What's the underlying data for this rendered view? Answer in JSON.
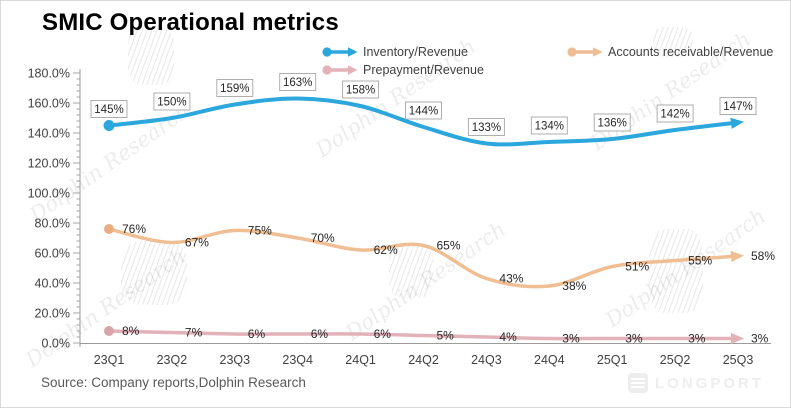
{
  "title": "SMIC Operational metrics",
  "source_note": "Source: Company reports,Dolphin Research",
  "watermark_text": "Dolphin Research",
  "brand_logo_text": "LONGPORT",
  "colors": {
    "inventory_line": "#2BA7DD",
    "prepayment_line": "#E2B2B8",
    "accounts_line": "#F0BE93",
    "axis": "#9B9B9B",
    "axis_label": "#404040",
    "data_label": "#262626",
    "label_box_border": "#A6A6A6"
  },
  "chart_data": {
    "type": "line",
    "title": "SMIC Operational metrics",
    "categories": [
      "23Q1",
      "23Q2",
      "23Q3",
      "23Q4",
      "24Q1",
      "24Q2",
      "24Q3",
      "24Q4",
      "25Q1",
      "25Q2",
      "25Q3"
    ],
    "series": [
      {
        "name": "Inventory/Revenue",
        "color": "#2BA7DD",
        "line_width": 4,
        "label_style": "boxed",
        "values": [
          145,
          150,
          159,
          163,
          158,
          144,
          133,
          134,
          136,
          142,
          147
        ]
      },
      {
        "name": "Prepayment/Revenue",
        "color": "#E2B2B8",
        "marker_color": "#D9A3AA",
        "line_width": 3.5,
        "label_style": "plain",
        "values": [
          8,
          7,
          6,
          6,
          6,
          5,
          4,
          3,
          3,
          3,
          3
        ]
      },
      {
        "name": "Accounts receivable/Revenue",
        "color": "#F0BE93",
        "marker_color": "#EBAE80",
        "line_width": 3.5,
        "label_style": "plain",
        "values": [
          76,
          67,
          75,
          70,
          62,
          65,
          43,
          38,
          51,
          55,
          58
        ]
      }
    ],
    "value_suffix": "%",
    "ylim": [
      0,
      180
    ],
    "ytick_step": 20,
    "yticklabels": [
      "0.0%",
      "20.0%",
      "40.0%",
      "60.0%",
      "80.0%",
      "100.0%",
      "120.0%",
      "140.0%",
      "160.0%",
      "180.0%"
    ],
    "xlabel": "",
    "ylabel": "",
    "grid": false,
    "legend_position": "top"
  }
}
